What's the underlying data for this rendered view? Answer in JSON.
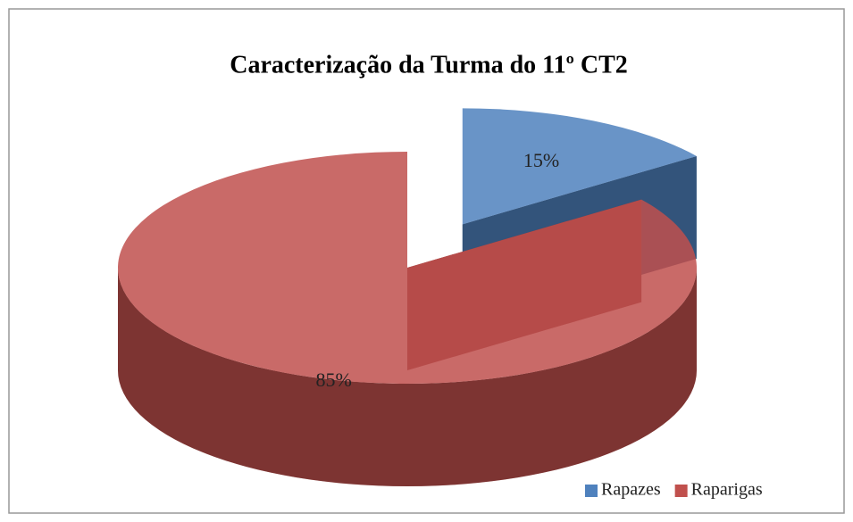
{
  "chart_data": {
    "type": "pie",
    "title": "Caracterização da Turma do 11º CT2",
    "categories": [
      "Rapazes",
      "Raparigas"
    ],
    "values": [
      15,
      85
    ],
    "value_labels": [
      "15%",
      "85%"
    ],
    "colors": [
      "#4f81bd",
      "#c0504d"
    ],
    "legend": "bottom-right"
  }
}
